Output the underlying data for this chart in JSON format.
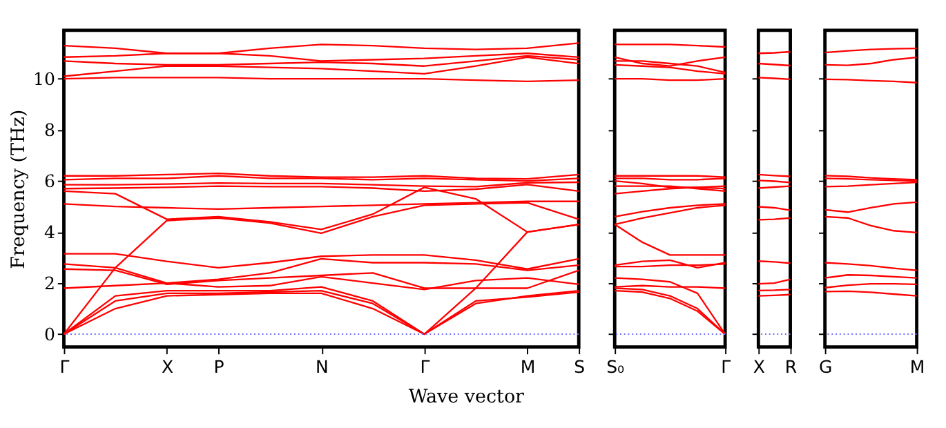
{
  "chart_data": [
    {
      "type": "line",
      "ylabel": "Frequency (THz)",
      "xlabel": "Wave vector",
      "color": "#ff0000",
      "line_style": "solid",
      "marker": "none",
      "grid": false,
      "categories": [
        "Γ",
        null,
        "X",
        "P",
        null,
        "N",
        null,
        "Γ",
        null,
        "M",
        "S"
      ],
      "ylim": [
        -0.5,
        11.9
      ],
      "yticks": [
        0,
        2,
        4,
        6,
        8,
        10
      ],
      "ref_lines": [
        {
          "axis": "y",
          "value": 0,
          "color": "#6b6bff",
          "line_style": "dotted"
        }
      ],
      "series": [
        {
          "values": [
            11.3,
            11.2,
            11.0,
            11.0,
            11.2,
            11.35,
            11.3,
            11.2,
            11.15,
            11.2,
            11.4
          ]
        },
        {
          "values": [
            10.85,
            10.9,
            11.0,
            11.0,
            10.9,
            10.7,
            10.75,
            10.8,
            10.9,
            11.0,
            10.85
          ]
        },
        {
          "values": [
            10.7,
            10.6,
            10.55,
            10.55,
            10.6,
            10.65,
            10.6,
            10.5,
            10.7,
            10.9,
            10.75
          ]
        },
        {
          "values": [
            10.1,
            10.3,
            10.5,
            10.5,
            10.45,
            10.4,
            10.3,
            10.2,
            10.5,
            10.85,
            10.6
          ]
        },
        {
          "values": [
            10.0,
            10.05,
            10.05,
            10.05,
            10.0,
            10.0,
            10.0,
            10.0,
            9.95,
            9.9,
            9.95
          ]
        },
        {
          "values": [
            6.2,
            6.2,
            6.25,
            6.3,
            6.2,
            6.15,
            6.15,
            6.2,
            6.1,
            6.08,
            6.25
          ]
        },
        {
          "values": [
            6.05,
            6.1,
            6.1,
            6.2,
            6.1,
            6.1,
            6.05,
            6.1,
            6.05,
            6.0,
            6.1
          ]
        },
        {
          "values": [
            5.85,
            5.85,
            5.88,
            5.92,
            5.9,
            5.9,
            5.85,
            5.8,
            5.78,
            5.93,
            5.95
          ]
        },
        {
          "values": [
            5.7,
            5.72,
            5.75,
            5.8,
            5.78,
            5.78,
            5.72,
            5.6,
            5.68,
            5.86,
            5.6
          ]
        },
        {
          "values": [
            5.6,
            5.5,
            4.5,
            4.6,
            4.4,
            4.1,
            4.7,
            5.75,
            5.3,
            4.0,
            4.3
          ]
        },
        {
          "values": [
            5.1,
            5.0,
            4.95,
            4.9,
            4.95,
            5.0,
            5.05,
            5.1,
            5.15,
            5.2,
            5.2
          ]
        },
        {
          "values": [
            0,
            2.6,
            4.45,
            4.55,
            4.35,
            3.95,
            4.6,
            5.05,
            5.1,
            5.15,
            4.5
          ]
        },
        {
          "values": [
            3.15,
            3.15,
            2.85,
            2.6,
            2.8,
            3.05,
            3.1,
            3.1,
            2.9,
            2.55,
            2.95
          ]
        },
        {
          "values": [
            2.75,
            2.6,
            2.0,
            2.15,
            2.4,
            2.95,
            2.8,
            2.8,
            2.75,
            2.5,
            2.7
          ]
        },
        {
          "values": [
            2.55,
            2.5,
            1.95,
            2.1,
            2.2,
            2.3,
            2.4,
            1.8,
            1.8,
            1.8,
            2.5
          ]
        },
        {
          "values": [
            1.8,
            1.9,
            2.0,
            1.85,
            1.9,
            2.25,
            2.0,
            1.75,
            2.1,
            2.2,
            1.95
          ]
        },
        {
          "values": [
            0,
            1.5,
            1.7,
            1.7,
            1.7,
            1.85,
            1.3,
            0,
            1.8,
            4.0,
            4.3
          ]
        },
        {
          "values": [
            0,
            1.3,
            1.6,
            1.6,
            1.65,
            1.7,
            1.2,
            0,
            1.2,
            1.5,
            1.7
          ]
        },
        {
          "values": [
            0,
            1.0,
            1.5,
            1.55,
            1.6,
            1.6,
            1.0,
            0,
            1.3,
            1.45,
            1.65
          ]
        }
      ]
    },
    {
      "type": "line",
      "color": "#ff0000",
      "line_style": "solid",
      "marker": "none",
      "grid": false,
      "tick_labels": "x",
      "categories": [
        "S₀",
        null,
        null,
        null,
        "Γ"
      ],
      "ylim": [
        -0.5,
        11.9
      ],
      "yticks": [
        {
          "value": 0,
          "label": null
        },
        {
          "value": 2,
          "label": null
        },
        {
          "value": 4,
          "label": null
        },
        {
          "value": 6,
          "label": null
        },
        {
          "value": 8,
          "label": null
        },
        {
          "value": 10,
          "label": null
        }
      ],
      "ref_lines": [
        {
          "axis": "y",
          "value": 0,
          "color": "#6b6bff",
          "line_style": "dotted"
        }
      ],
      "series": [
        {
          "values": [
            11.35,
            11.35,
            11.35,
            11.3,
            11.25
          ]
        },
        {
          "values": [
            10.85,
            10.6,
            10.5,
            10.7,
            10.85
          ]
        },
        {
          "values": [
            10.7,
            10.7,
            10.6,
            10.5,
            10.25
          ]
        },
        {
          "values": [
            10.55,
            10.5,
            10.45,
            10.3,
            10.2
          ]
        },
        {
          "values": [
            10.0,
            10.0,
            9.95,
            9.95,
            10.0
          ]
        },
        {
          "values": [
            6.2,
            6.2,
            6.2,
            6.2,
            6.15
          ]
        },
        {
          "values": [
            6.1,
            6.1,
            6.05,
            6.05,
            6.1
          ]
        },
        {
          "values": [
            6.0,
            5.9,
            5.75,
            5.75,
            5.8
          ]
        },
        {
          "values": [
            5.8,
            5.8,
            5.8,
            5.7,
            5.6
          ]
        },
        {
          "values": [
            5.5,
            5.6,
            5.7,
            5.75,
            5.7
          ]
        },
        {
          "values": [
            4.6,
            4.8,
            4.95,
            5.05,
            5.1
          ]
        },
        {
          "values": [
            4.3,
            4.55,
            4.75,
            4.95,
            5.05
          ]
        },
        {
          "values": [
            4.3,
            3.6,
            3.1,
            3.1,
            3.1
          ]
        },
        {
          "values": [
            2.7,
            2.85,
            2.9,
            2.6,
            2.8
          ]
        },
        {
          "values": [
            2.65,
            2.65,
            2.7,
            2.7,
            2.75
          ]
        },
        {
          "values": [
            2.2,
            2.15,
            2.05,
            1.6,
            0
          ]
        },
        {
          "values": [
            1.85,
            1.9,
            1.85,
            1.85,
            1.8
          ]
        },
        {
          "values": [
            1.8,
            1.75,
            1.5,
            1.0,
            0
          ]
        },
        {
          "values": [
            1.7,
            1.65,
            1.4,
            0.9,
            0
          ]
        }
      ]
    },
    {
      "type": "line",
      "color": "#ff0000",
      "line_style": "solid",
      "marker": "none",
      "grid": false,
      "tick_labels": "x",
      "categories": [
        "X",
        null,
        "R"
      ],
      "ylim": [
        -0.5,
        11.9
      ],
      "yticks": [
        {
          "value": 0,
          "label": null
        },
        {
          "value": 2,
          "label": null
        },
        {
          "value": 4,
          "label": null
        },
        {
          "value": 6,
          "label": null
        },
        {
          "value": 8,
          "label": null
        },
        {
          "value": 10,
          "label": null
        }
      ],
      "ref_lines": [
        {
          "axis": "y",
          "value": 0,
          "color": "#6b6bff",
          "line_style": "dotted"
        }
      ],
      "series": [
        {
          "values": [
            11.0,
            11.02,
            11.06
          ]
        },
        {
          "values": [
            10.6,
            10.56,
            10.52
          ]
        },
        {
          "values": [
            10.05,
            10.02,
            9.98
          ]
        },
        {
          "values": [
            6.25,
            6.21,
            6.18
          ]
        },
        {
          "values": [
            6.02,
            5.99,
            5.94
          ]
        },
        {
          "values": [
            5.72,
            5.76,
            5.8
          ]
        },
        {
          "values": [
            4.99,
            4.95,
            4.85
          ]
        },
        {
          "values": [
            4.48,
            4.5,
            4.55
          ]
        },
        {
          "values": [
            2.86,
            2.83,
            2.78
          ]
        },
        {
          "values": [
            1.97,
            2.0,
            2.15
          ]
        },
        {
          "values": [
            1.71,
            1.72,
            1.75
          ]
        },
        {
          "values": [
            1.5,
            1.52,
            1.55
          ]
        }
      ]
    },
    {
      "type": "line",
      "color": "#ff0000",
      "line_style": "solid",
      "marker": "none",
      "grid": false,
      "tick_labels": "x",
      "categories": [
        "G",
        null,
        null,
        null,
        "M"
      ],
      "ylim": [
        -0.5,
        11.9
      ],
      "yticks": [
        {
          "value": 0,
          "label": null
        },
        {
          "value": 2,
          "label": null
        },
        {
          "value": 4,
          "label": null
        },
        {
          "value": 6,
          "label": null
        },
        {
          "value": 8,
          "label": null
        },
        {
          "value": 10,
          "label": null
        }
      ],
      "ref_lines": [
        {
          "axis": "y",
          "value": 0,
          "color": "#6b6bff",
          "line_style": "dotted"
        }
      ],
      "series": [
        {
          "values": [
            11.03,
            11.1,
            11.15,
            11.18,
            11.19
          ]
        },
        {
          "values": [
            10.55,
            10.53,
            10.6,
            10.75,
            10.84
          ]
        },
        {
          "values": [
            9.98,
            9.97,
            9.93,
            9.9,
            9.85
          ]
        },
        {
          "values": [
            6.21,
            6.18,
            6.12,
            6.08,
            6.05
          ]
        },
        {
          "values": [
            6.1,
            6.08,
            6.05,
            6.02,
            6.0
          ]
        },
        {
          "values": [
            5.78,
            5.8,
            5.85,
            5.9,
            5.95
          ]
        },
        {
          "values": [
            4.87,
            4.78,
            4.95,
            5.1,
            5.17
          ]
        },
        {
          "values": [
            4.6,
            4.55,
            4.25,
            4.05,
            3.98
          ]
        },
        {
          "values": [
            2.8,
            2.75,
            2.68,
            2.58,
            2.5
          ]
        },
        {
          "values": [
            2.2,
            2.32,
            2.3,
            2.25,
            2.2
          ]
        },
        {
          "values": [
            1.82,
            1.92,
            1.97,
            1.97,
            1.95
          ]
        },
        {
          "values": [
            1.67,
            1.68,
            1.64,
            1.57,
            1.5
          ]
        }
      ]
    }
  ]
}
